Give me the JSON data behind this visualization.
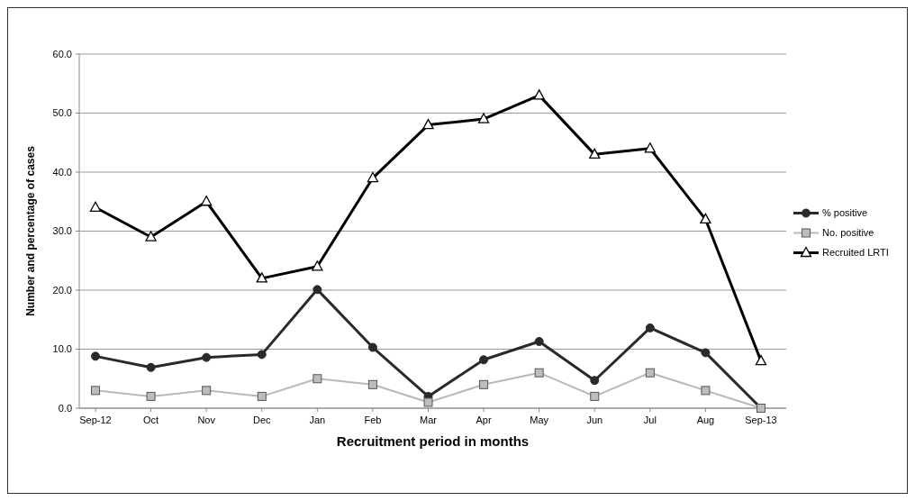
{
  "chart_data": {
    "type": "line",
    "xlabel": "Recruitment period in months",
    "ylabel": "Number and percentage of cases",
    "categories": [
      "Sep-12",
      "Oct",
      "Nov",
      "Dec",
      "Jan",
      "Feb",
      "Mar",
      "Apr",
      "May",
      "Jun",
      "Jul",
      "Aug",
      "Sep-13"
    ],
    "series": [
      {
        "name": "% positive",
        "color": "#2a2a2a",
        "marker": "circle",
        "values": [
          8.8,
          6.9,
          8.6,
          9.1,
          20.1,
          10.3,
          2.0,
          8.2,
          11.3,
          4.7,
          13.6,
          9.4,
          0
        ]
      },
      {
        "name": "No. positive",
        "color": "#b8b8b8",
        "marker": "square",
        "values": [
          3,
          2,
          3,
          2,
          5,
          4,
          1,
          4,
          6,
          2,
          6,
          3,
          0
        ]
      },
      {
        "name": "Recruited LRTI",
        "color": "#000000",
        "marker": "triangle",
        "values": [
          34,
          29,
          35,
          22,
          24,
          39,
          48,
          49,
          53,
          43,
          44,
          32,
          8
        ]
      }
    ],
    "ylim": [
      0,
      60
    ],
    "yticks": [
      {
        "value": 0,
        "label": "0.0"
      },
      {
        "value": 10,
        "label": "10.0"
      },
      {
        "value": 20,
        "label": "20.0"
      },
      {
        "value": 30,
        "label": "30.0"
      },
      {
        "value": 40,
        "label": "40.0"
      },
      {
        "value": 50,
        "label": "50.0"
      },
      {
        "value": 60,
        "label": "60.0"
      }
    ],
    "grid": "y",
    "legend": "right"
  }
}
